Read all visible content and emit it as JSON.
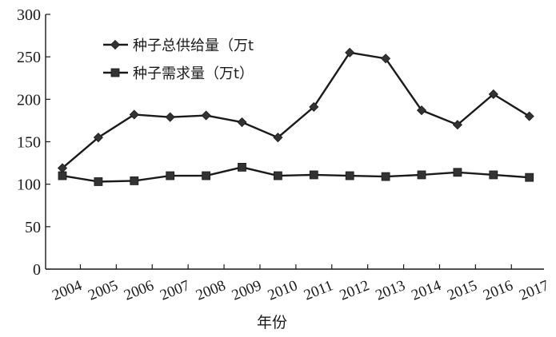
{
  "chart_data": {
    "type": "line",
    "categories": [
      "2004",
      "2005",
      "2006",
      "2007",
      "2008",
      "2009",
      "2010",
      "2011",
      "2012",
      "2013",
      "2014",
      "2015",
      "2016",
      "2017"
    ],
    "series": [
      {
        "name": "种子总供给量（万t",
        "marker": "diamond",
        "values": [
          119,
          155,
          182,
          179,
          181,
          173,
          155,
          191,
          255,
          248,
          187,
          170,
          206,
          180
        ]
      },
      {
        "name": "种子需求量（万t）",
        "marker": "square",
        "values": [
          110,
          103,
          104,
          110,
          110,
          120,
          110,
          111,
          110,
          109,
          111,
          114,
          111,
          108
        ]
      }
    ],
    "title": "",
    "xlabel": "年份",
    "ylabel": "",
    "ylim": [
      0,
      300
    ],
    "yticks": [
      "0",
      "50",
      "100",
      "150",
      "200",
      "250",
      "300"
    ],
    "grid": false,
    "legend_position": "top-left",
    "line_color": "#1a1a1a"
  }
}
